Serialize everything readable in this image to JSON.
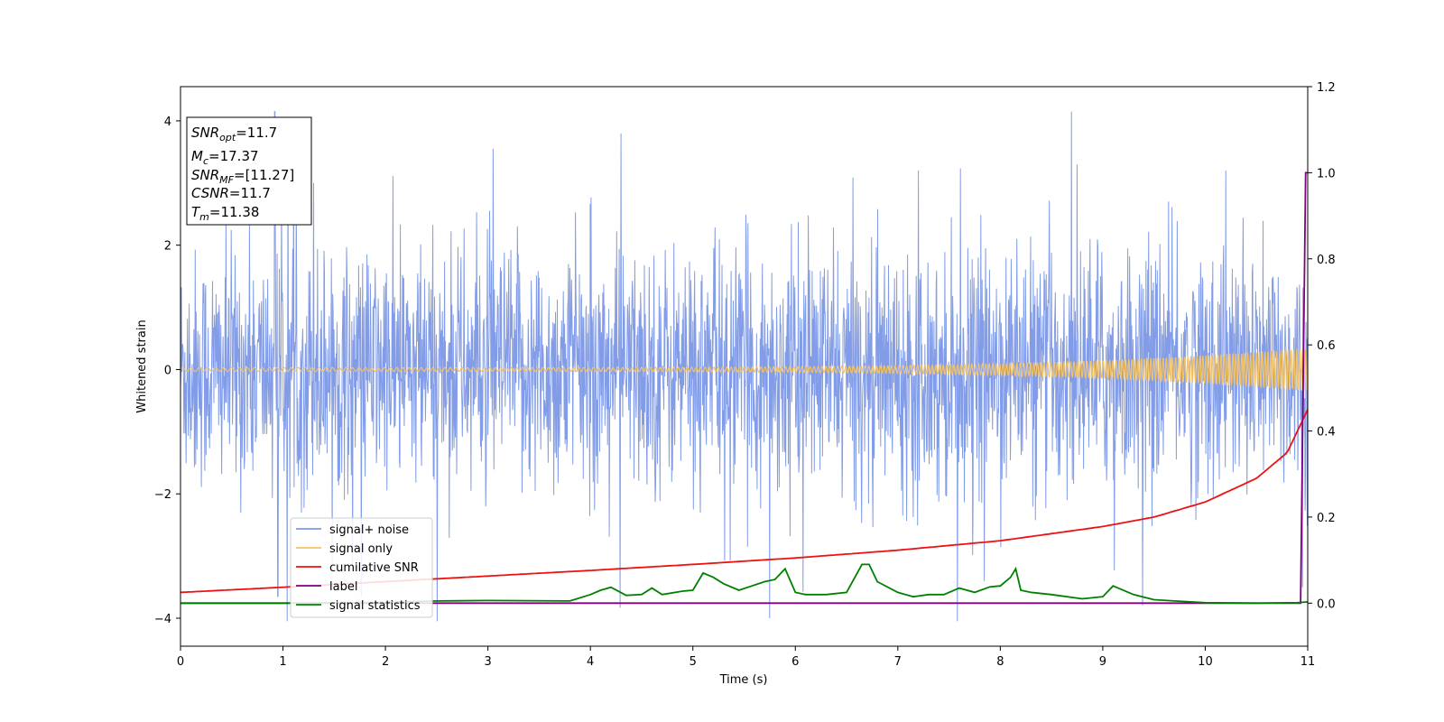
{
  "chart_data": {
    "type": "line",
    "xlabel": "Time (s)",
    "ylabel": "Whitened strain",
    "xlim": [
      0,
      11
    ],
    "ylim": [
      -4.45,
      4.55
    ],
    "y2lim": [
      -0.1,
      1.2
    ],
    "x_ticks": [
      0,
      1,
      2,
      3,
      4,
      5,
      6,
      7,
      8,
      9,
      10,
      11
    ],
    "y_ticks": [
      -4,
      -2,
      0,
      2,
      4
    ],
    "y2_ticks": [
      "0.0",
      "0.2",
      "0.4",
      "0.6",
      "0.8",
      "1.0",
      "1.2"
    ],
    "grid": false,
    "legend_position": "lower-left",
    "series": [
      {
        "name": "signal+ noise",
        "axis": "left",
        "color": "#7b97e6",
        "description_values": {
          "typical_band": [
            -2.0,
            2.0
          ],
          "max": 4.15,
          "min": -4.05
        },
        "peaks": [
          [
            0.92,
            4.15
          ],
          [
            0.95,
            -3.65
          ],
          [
            1.3,
            3.0
          ],
          [
            3.05,
            3.55
          ],
          [
            4.3,
            3.8
          ],
          [
            5.75,
            -4.0
          ],
          [
            7.2,
            3.2
          ],
          [
            7.58,
            -4.05
          ],
          [
            8.75,
            3.3
          ],
          [
            10.2,
            3.2
          ],
          [
            10.95,
            -3.5
          ]
        ]
      },
      {
        "name": "signal only",
        "axis": "left",
        "color": "#f5c262",
        "amplitude_start": 0.03,
        "amplitude_end": 0.35
      },
      {
        "name": "cumilative SNR",
        "axis": "right",
        "color": "#ee1111",
        "x": [
          0,
          1,
          2,
          3,
          4,
          5,
          6,
          7,
          8,
          9,
          9.5,
          10,
          10.5,
          10.8,
          11
        ],
        "y": [
          0.025,
          0.037,
          0.05,
          0.063,
          0.076,
          0.09,
          0.105,
          0.123,
          0.145,
          0.178,
          0.2,
          0.235,
          0.29,
          0.35,
          0.45
        ]
      },
      {
        "name": "label",
        "axis": "right",
        "color": "#800080",
        "x": [
          0,
          10.93,
          10.98,
          11
        ],
        "y": [
          0.0,
          0.0,
          1.0,
          1.0
        ]
      },
      {
        "name": "signal statistics",
        "axis": "right",
        "color": "#008000",
        "x": [
          0,
          1.0,
          2.0,
          2.5,
          3.0,
          3.8,
          4.0,
          4.1,
          4.2,
          4.35,
          4.5,
          4.6,
          4.7,
          4.9,
          5.0,
          5.1,
          5.2,
          5.3,
          5.45,
          5.55,
          5.7,
          5.8,
          5.9,
          6.0,
          6.1,
          6.3,
          6.5,
          6.65,
          6.72,
          6.8,
          7.0,
          7.15,
          7.3,
          7.45,
          7.6,
          7.75,
          7.9,
          8.0,
          8.1,
          8.15,
          8.2,
          8.3,
          8.5,
          8.8,
          9.0,
          9.1,
          9.3,
          9.5,
          9.7,
          10.0,
          10.5,
          10.9,
          11
        ],
        "y": [
          0.0,
          0.0,
          0.002,
          0.005,
          0.006,
          0.005,
          0.02,
          0.03,
          0.037,
          0.018,
          0.02,
          0.035,
          0.02,
          0.028,
          0.03,
          0.07,
          0.06,
          0.045,
          0.03,
          0.038,
          0.05,
          0.055,
          0.08,
          0.025,
          0.02,
          0.02,
          0.025,
          0.09,
          0.09,
          0.05,
          0.025,
          0.015,
          0.02,
          0.02,
          0.035,
          0.025,
          0.038,
          0.04,
          0.06,
          0.08,
          0.03,
          0.025,
          0.02,
          0.01,
          0.015,
          0.04,
          0.02,
          0.008,
          0.005,
          0.001,
          0.0,
          0.001,
          0.003
        ]
      }
    ],
    "annotation": {
      "lines": [
        {
          "sym": "SNR",
          "sub": "opt",
          "value": "=11.7"
        },
        {
          "sym": "M",
          "sub": "c",
          "value": "=17.37"
        },
        {
          "sym": "SNR",
          "sub": "MF",
          "value": "=[11.27]"
        },
        {
          "sym": "CSNR",
          "sub": "",
          "value": "=11.7"
        },
        {
          "sym": "T",
          "sub": "m",
          "value": "=11.38"
        }
      ]
    }
  }
}
